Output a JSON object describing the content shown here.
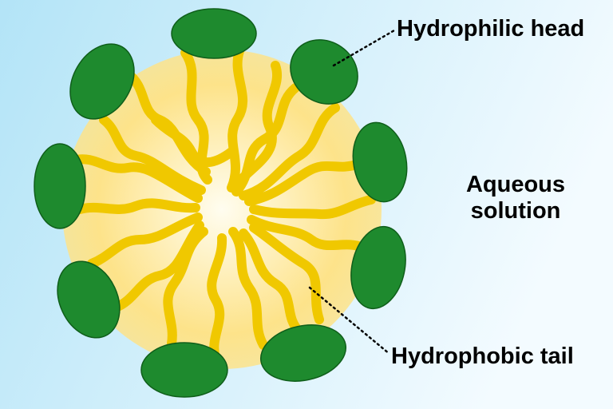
{
  "labels": {
    "hydrophilic_head": "Hydrophilic head",
    "aqueous_line1": "Aqueous",
    "aqueous_line2": "solution",
    "hydrophobic_tail": "Hydrophobic tail"
  },
  "colors": {
    "background_left": "#b3e4f7",
    "background_right": "#f3fbff",
    "core_center": "#fffdf0",
    "core_edge": "#fde38a",
    "tail": "#f0c800",
    "head": "#1e8a2e",
    "head_outline": "#0f5e1a",
    "leader_line": "#000000"
  },
  "icons": {
    "head": "green-ellipse",
    "tail": "yellow-wavy-line"
  }
}
